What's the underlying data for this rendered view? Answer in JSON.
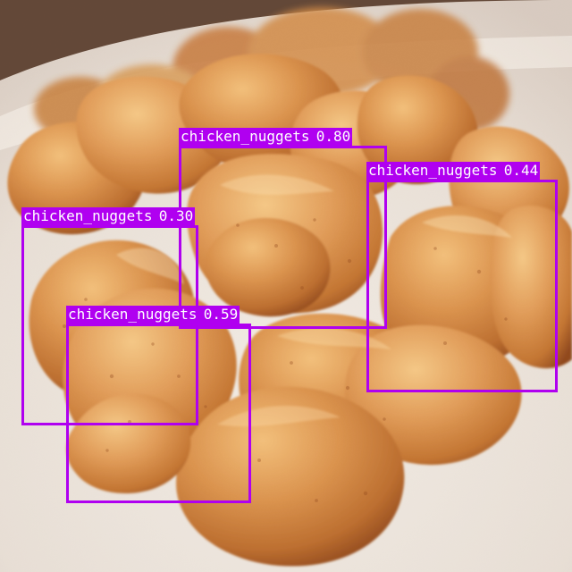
{
  "detections": [
    {
      "name": "chicken_nuggets",
      "score": "0.80"
    },
    {
      "name": "chicken_nuggets",
      "score": "0.44"
    },
    {
      "name": "chicken_nuggets",
      "score": "0.30"
    },
    {
      "name": "chicken_nuggets",
      "score": "0.59"
    }
  ],
  "colors": {
    "detection_box": "#b000f0",
    "label_text": "#ffffff",
    "plate": "#eee6dc",
    "background": "#7a5a45",
    "nugget_light": "#e7a35d",
    "nugget_mid": "#cf7f3d",
    "nugget_dark": "#9a4f21"
  }
}
